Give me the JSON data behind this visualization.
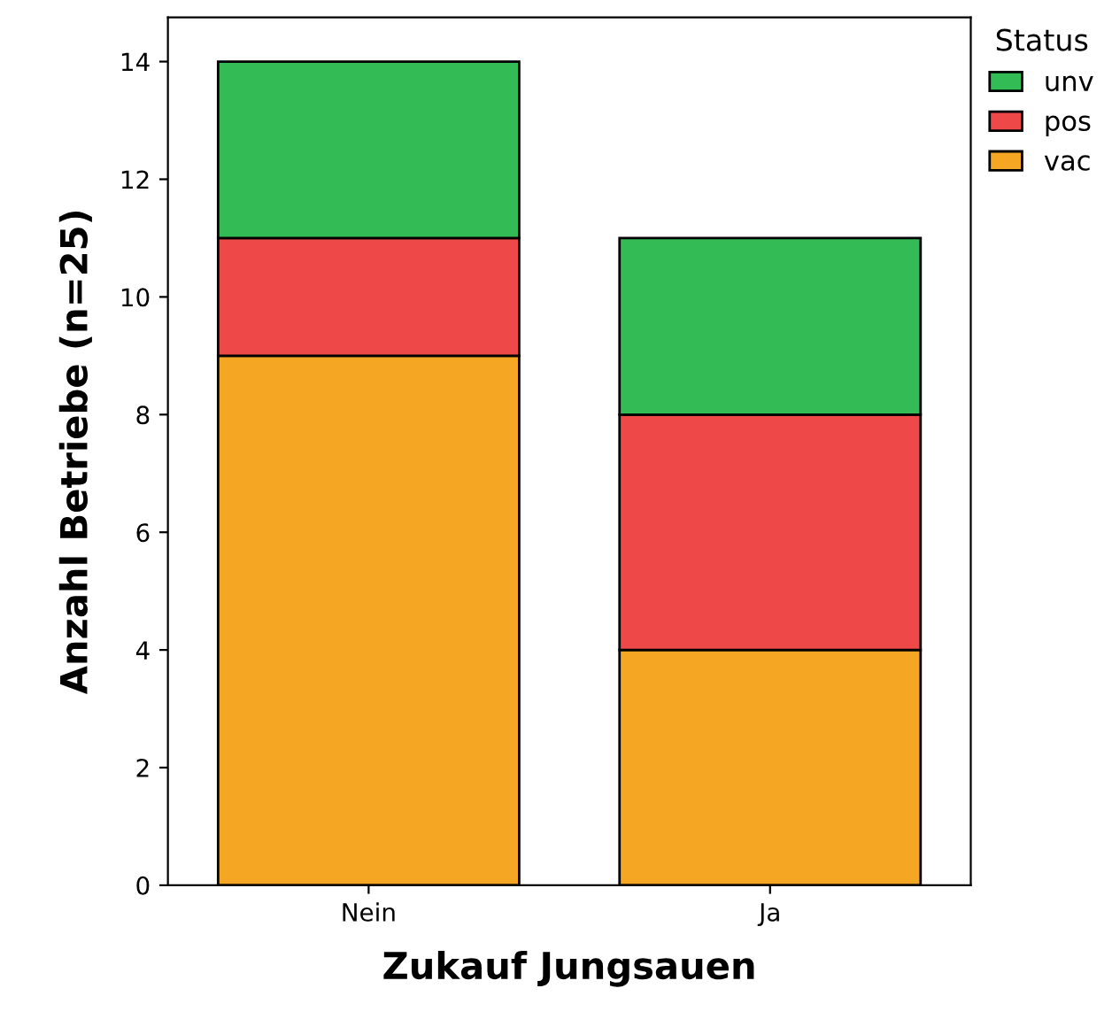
{
  "chart_data": {
    "type": "bar",
    "xlabel": "Zukauf Jungsauen",
    "ylabel": "Anzahl Betriebe (n=25)",
    "legend_title": "Status",
    "categories": [
      "Nein",
      "Ja"
    ],
    "series": [
      {
        "name": "vac",
        "color": "#f5a623",
        "values": [
          9,
          4
        ]
      },
      {
        "name": "pos",
        "color": "#ee4848",
        "values": [
          2,
          4
        ]
      },
      {
        "name": "unv",
        "color": "#33bb55",
        "values": [
          3,
          3
        ]
      }
    ],
    "stacked": true,
    "ylim": [
      0,
      14.75
    ],
    "yticks": [
      0,
      2,
      4,
      6,
      8,
      10,
      12,
      14
    ],
    "grid": false,
    "legend": "top right"
  }
}
